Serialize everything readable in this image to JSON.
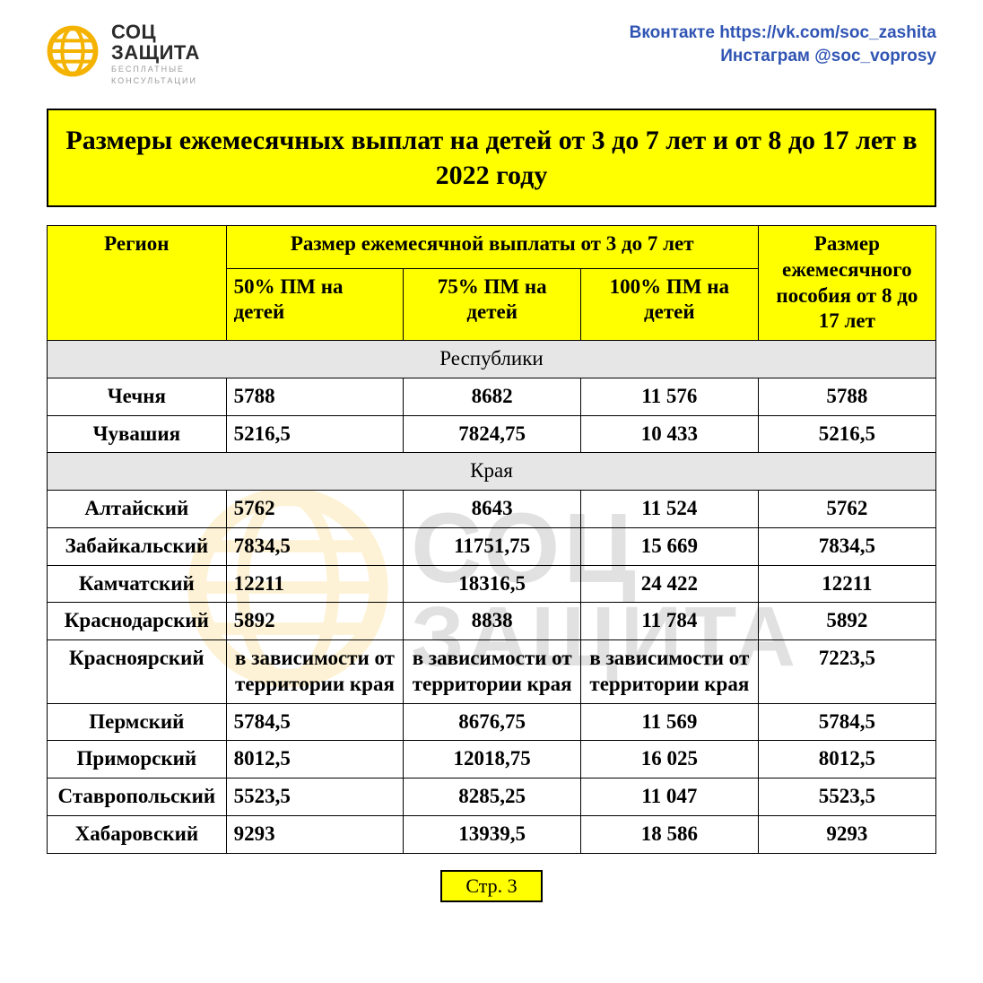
{
  "brand": {
    "line1": "СОЦ",
    "line2": "ЗАЩИТА",
    "sub1": "БЕСПЛАТНЫЕ",
    "sub2": "КОНСУЛЬТАЦИИ",
    "logo_color": "#f5b301"
  },
  "social": {
    "vk": "Вконтакте https://vk.com/soc_zashita",
    "ig": "Инстаграм  @soc_voprosy",
    "text_color": "#2f54b3"
  },
  "title": "Размеры ежемесячных  выплат на детей от 3 до 7 лет и от 8 до 17 лет  в 2022 году",
  "colors": {
    "highlight_bg": "#ffff00",
    "border": "#000000",
    "section_bg": "#e6e6e6",
    "page_bg": "#ffffff"
  },
  "table": {
    "headers": {
      "region": "Регион",
      "group_3_7": "Размер ежемесячной выплаты от 3 до 7 лет",
      "pct50": "50% ПМ на детей",
      "pct75": "75% ПМ на детей",
      "pct100": "100% ПМ на детей",
      "age8_17": "Размер ежемесячного пособия от 8 до 17 лет"
    },
    "sections": [
      {
        "label": "Республики",
        "rows": [
          {
            "region": "Чечня",
            "c50": "5788",
            "c75": "8682",
            "c100": "11 576",
            "c8_17": "5788"
          },
          {
            "region": "Чувашия",
            "c50": "5216,5",
            "c75": "7824,75",
            "c100": "10 433",
            "c8_17": "5216,5"
          }
        ]
      },
      {
        "label": "Края",
        "rows": [
          {
            "region": "Алтайский",
            "c50": "5762",
            "c75": "8643",
            "c100": "11 524",
            "c8_17": "5762"
          },
          {
            "region": "Забайкальский",
            "c50": "7834,5",
            "c75": "11751,75",
            "c100": "15 669",
            "c8_17": "7834,5"
          },
          {
            "region": "Камчатский",
            "c50": "12211",
            "c75": "18316,5",
            "c100": "24 422",
            "c8_17": "12211"
          },
          {
            "region": "Краснодарский",
            "c50": "5892",
            "c75": "8838",
            "c100": "11 784",
            "c8_17": "5892"
          },
          {
            "region": "Красноярский",
            "c50": "в зависимости от территории края",
            "c75": "в зависимости от территории края",
            "c100": "в зависимости от территории края",
            "c8_17": "7223,5",
            "note": true
          },
          {
            "region": "Пермский",
            "c50": "5784,5",
            "c75": "8676,75",
            "c100": "11 569",
            "c8_17": "5784,5"
          },
          {
            "region": "Приморский",
            "c50": "8012,5",
            "c75": "12018,75",
            "c100": "16 025",
            "c8_17": "8012,5"
          },
          {
            "region": "Ставропольский",
            "c50": "5523,5",
            "c75": "8285,25",
            "c100": "11 047",
            "c8_17": "5523,5"
          },
          {
            "region": "Хабаровский",
            "c50": "9293",
            "c75": "13939,5",
            "c100": "18 586",
            "c8_17": "9293"
          }
        ]
      }
    ]
  },
  "pager": "Стр. 3",
  "watermark": {
    "line1": "СОЦ",
    "line2": "ЗАЩИТА"
  }
}
